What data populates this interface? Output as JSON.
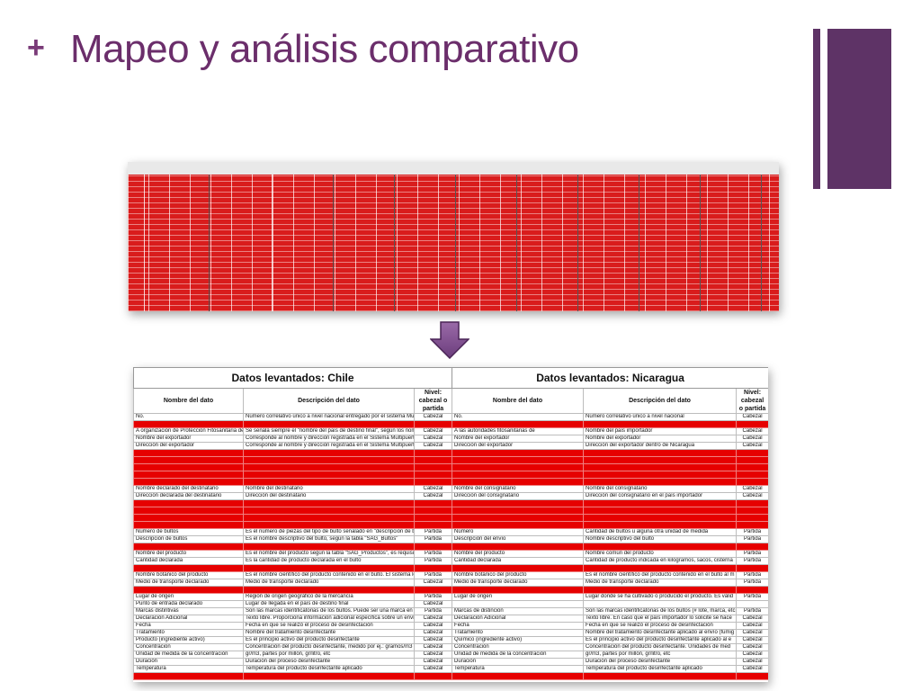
{
  "slide": {
    "plus": "+",
    "title": "Mapeo y análisis comparativo"
  },
  "thumbnail": {
    "description_icon": "spreadsheet-thumbnail",
    "fill_color": "#d91c1c"
  },
  "arrow": {
    "icon": "down-arrow-icon",
    "color": "#7a4a8a"
  },
  "table": {
    "headers": {
      "chile": "Datos levantados: Chile",
      "nicaragua": "Datos levantados: Nicaragua",
      "name": "Nombre del dato",
      "desc": "Descripción del dato",
      "level": "Nivel: cabezal o partida"
    },
    "rows": [
      {
        "red": false,
        "c1": "No.",
        "c2": "Número correlativo único a nivel nacional entregado por el sistema Multipuerto",
        "c3": "Cabezal",
        "c4": "No.",
        "c5": "Número correlativo único a nivel nacional",
        "c6": "Cabezal"
      },
      {
        "red": true
      },
      {
        "red": false,
        "c1": "A organización de Protección Fitosanitaria de",
        "c2": "Se señala siempre el \"nombre del país de destino final\", según los nombres",
        "c3": "Cabezal",
        "c4": "A las autoridades fitosanitarias de",
        "c5": "Nombre del país importador",
        "c6": "Cabezal"
      },
      {
        "red": false,
        "c1": "Nombre del exportador",
        "c2": "Corresponde al nombre y dirección registrada en el Sistema Multipuerto l",
        "c3": "Cabezal",
        "c4": "Nombre del exportador",
        "c5": "Nombre del exportador",
        "c6": "Cabezal"
      },
      {
        "red": false,
        "c1": "Dirección del exportador",
        "c2": "Corresponde al nombre y dirección registrada en el Sistema Multipuerto l",
        "c3": "Cabezal",
        "c4": "Dirección del exportador",
        "c5": "Dirección del exportador dentro de Nicaragua",
        "c6": "Cabezal"
      },
      {
        "red": true
      },
      {
        "red": true
      },
      {
        "red": true
      },
      {
        "red": true
      },
      {
        "red": true
      },
      {
        "red": false,
        "c1": "Nombre declarado del destinatario",
        "c2": "Nombre del destinatario",
        "c3": "Cabezal",
        "c4": "Nombre del consignatario",
        "c5": "Nombre del consignatario",
        "c6": "Cabezal"
      },
      {
        "red": false,
        "c1": "Dirección declarada del destinatario",
        "c2": "Dirección del destinatario",
        "c3": "Cabezal",
        "c4": "Dirección del consignatario",
        "c5": "Dirección del consignatario en el país importador",
        "c6": "Cabezal"
      },
      {
        "red": true
      },
      {
        "red": true
      },
      {
        "red": true
      },
      {
        "red": true
      },
      {
        "red": false,
        "c1": "Número de bultos",
        "c2": "Es el número de piezas del tipo de bulto señalado en \"descripción de bulto",
        "c3": "Partida",
        "c4": "Número",
        "c5": "Cantidad de bultos u alguna otra unidad de medida",
        "c6": "Partida"
      },
      {
        "red": false,
        "c1": "Descripción de bultos",
        "c2": "Es el nombre descriptivo del bulto, según la tabla \"SAG_Bultos\"",
        "c3": "Partida",
        "c4": "Descripción del envío",
        "c5": "Nombre descriptivo del bulto",
        "c6": "Partida"
      },
      {
        "red": true
      },
      {
        "red": false,
        "c1": "Nombre del producto",
        "c2": "Es el nombre del producto según la tabla \"SAG_Productos\", es requisito",
        "c3": "Partida",
        "c4": "Nombre del producto",
        "c5": "Nombre común del producto",
        "c6": "Partida"
      },
      {
        "red": false,
        "c1": "Cantidad declarada",
        "c2": "Es la cantidad de producto declarada en el bulto",
        "c3": "Partida",
        "c4": "Cantidad declarada",
        "c5": "Cantidad de producto indicada en kilogramos, sacos, cisterna",
        "c6": "Partida"
      },
      {
        "red": true
      },
      {
        "red": false,
        "c1": "Nombre botánico del producto",
        "c2": "Es el nombre científico del producto contenido en el bulto. El sistema lo a",
        "c3": "Partida",
        "c4": "Nombre botánico del producto",
        "c5": "Es el nombre científico del producto contenido en el bulto al m",
        "c6": "Partida"
      },
      {
        "red": false,
        "c1": "Medio de transporte declarado",
        "c2": "Medio de transporte declarado",
        "c3": "Cabezal",
        "c4": "Medio de transporte declarado",
        "c5": "Medio de transporte declarado",
        "c6": "Partida"
      },
      {
        "red": true
      },
      {
        "red": false,
        "c1": "Lugar de origen",
        "c2": "Región de origen geográfico de la mercancía",
        "c3": "Partida",
        "c4": "Lugar de origen",
        "c5": "Lugar donde se ha cultivado o producido el producto. Es válid",
        "c6": "Partida"
      },
      {
        "red": false,
        "c1": "Punto de entrada declarado",
        "c2": "Lugar de llegada en el país de destino final",
        "c3": "Cabezal",
        "c4": "",
        "c5": "",
        "c6": ""
      },
      {
        "red": false,
        "c1": "Marcas distintivas",
        "c2": "Son las marcas identificatorias de los bultos. Puede ser una marca en un",
        "c3": "Partida",
        "c4": "Marcas de distinción",
        "c5": "Son las marcas identificatorias de los bultos (# lote, marca, etc",
        "c6": "Partida"
      },
      {
        "red": false,
        "c1": "Declaración Adicional",
        "c2": "Texto libre. Proporciona información adicional específica sobre un envío",
        "c3": "Cabezal",
        "c4": "Declaración Adicional",
        "c5": "Texto libre. En caso que el país importador lo solicite se hace",
        "c6": "Cabezal"
      },
      {
        "red": false,
        "c1": "Fecha",
        "c2": "Fecha en que se realizó el proceso de desinfectación",
        "c3": "Cabezal",
        "c4": "Fecha",
        "c5": "Fecha en que se realizó el proceso de desinfectación",
        "c6": "Cabezal"
      },
      {
        "red": false,
        "c1": "Tratamiento",
        "c2": "Nombre del tratamiento desinfectante",
        "c3": "Cabezal",
        "c4": "Tratamiento",
        "c5": "Nombre del tratamiento desinfectante aplicado al envío (fumig",
        "c6": "Cabezal"
      },
      {
        "red": false,
        "c1": "Producto (ingrediente activo)",
        "c2": "Es el principio activo del producto desinfectante",
        "c3": "Cabezal",
        "c4": "Químico (ingrediente activo)",
        "c5": "Es el principio activo del producto desinfectante aplicado al e",
        "c6": "Cabezal"
      },
      {
        "red": false,
        "c1": "Concentración",
        "c2": "Concentración del producto desinfectante, medido por ej.: gramos/m3 o",
        "c3": "Cabezal",
        "c4": "Concentración",
        "c5": "Concentración del producto desinfectante. Unidades de med",
        "c6": "Cabezal"
      },
      {
        "red": false,
        "c1": "Unidad de medida de la concentración",
        "c2": "gr/m3, partes por millón, gr/litro, etc",
        "c3": "Cabezal",
        "c4": "Unidad de medida de la concentración",
        "c5": "gr/m3, partes por millón, gr/litro, etc",
        "c6": "Cabezal"
      },
      {
        "red": false,
        "c1": "Duración",
        "c2": "Duración del proceso desinfectante",
        "c3": "Cabezal",
        "c4": "Duración",
        "c5": "Duración del proceso desinfectante",
        "c6": "Cabezal"
      },
      {
        "red": false,
        "c1": "Temperatura",
        "c2": "Temperatura del producto desinfectante aplicado",
        "c3": "Cabezal",
        "c4": "Temperatura",
        "c5": "Temperatura del producto desinfectante aplicado",
        "c6": "Cabezal"
      },
      {
        "red": true
      }
    ]
  }
}
